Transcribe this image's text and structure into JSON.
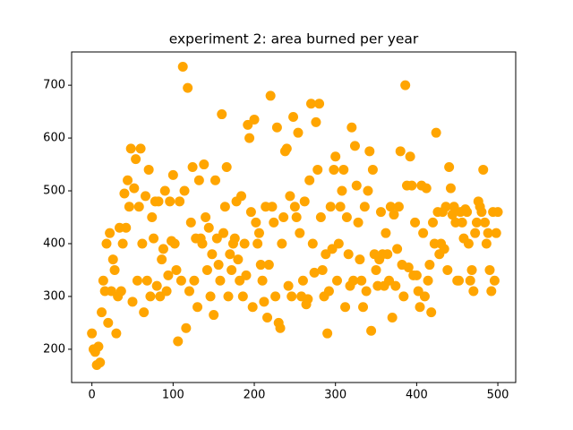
{
  "chart_data": {
    "type": "scatter",
    "title": "experiment 2: area burned per year",
    "color": "#ffa500",
    "xlim": [
      -25,
      522
    ],
    "ylim": [
      137,
      763
    ],
    "xticks": [
      0,
      100,
      200,
      300,
      400,
      500
    ],
    "yticks": [
      200,
      300,
      400,
      500,
      600,
      700
    ],
    "x": [
      0,
      2,
      4,
      6,
      8,
      10,
      12,
      14,
      16,
      18,
      20,
      22,
      24,
      26,
      28,
      30,
      32,
      34,
      36,
      38,
      40,
      42,
      44,
      46,
      48,
      50,
      52,
      54,
      56,
      58,
      60,
      62,
      64,
      66,
      68,
      70,
      72,
      74,
      76,
      78,
      80,
      82,
      84,
      86,
      88,
      90,
      92,
      94,
      96,
      98,
      100,
      102,
      104,
      106,
      108,
      110,
      112,
      114,
      116,
      118,
      120,
      122,
      124,
      126,
      128,
      130,
      132,
      134,
      136,
      138,
      140,
      142,
      144,
      146,
      148,
      150,
      152,
      154,
      156,
      158,
      160,
      162,
      164,
      166,
      168,
      170,
      172,
      174,
      176,
      178,
      180,
      182,
      184,
      186,
      188,
      190,
      192,
      194,
      196,
      198,
      200,
      202,
      204,
      206,
      208,
      210,
      212,
      214,
      216,
      218,
      220,
      222,
      224,
      226,
      228,
      230,
      232,
      234,
      236,
      238,
      240,
      242,
      244,
      246,
      248,
      250,
      252,
      254,
      256,
      258,
      260,
      262,
      264,
      266,
      268,
      270,
      272,
      274,
      276,
      278,
      280,
      282,
      284,
      286,
      288,
      290,
      292,
      294,
      296,
      298,
      300,
      302,
      304,
      306,
      308,
      310,
      312,
      314,
      316,
      318,
      320,
      322,
      324,
      326,
      328,
      330,
      332,
      334,
      336,
      338,
      340,
      342,
      344,
      346,
      348,
      350,
      352,
      354,
      356,
      358,
      360,
      362,
      364,
      366,
      368,
      370,
      372,
      374,
      376,
      378,
      380,
      382,
      384,
      386,
      388,
      390,
      392,
      394,
      396,
      398,
      400,
      402,
      404,
      406,
      408,
      410,
      412,
      414,
      416,
      418,
      420,
      422,
      424,
      426,
      428,
      430,
      432,
      434,
      436,
      438,
      440,
      442,
      444,
      446,
      448,
      450,
      452,
      454,
      456,
      458,
      460,
      462,
      464,
      466,
      468,
      470,
      472,
      474,
      476,
      478,
      480,
      482,
      484,
      486,
      488,
      490,
      492,
      494,
      496,
      498,
      500
    ],
    "y": [
      230,
      200,
      195,
      170,
      205,
      175,
      270,
      330,
      310,
      400,
      250,
      420,
      310,
      370,
      350,
      230,
      300,
      430,
      310,
      400,
      495,
      430,
      520,
      470,
      580,
      290,
      505,
      560,
      330,
      470,
      580,
      400,
      270,
      490,
      330,
      540,
      300,
      450,
      410,
      480,
      320,
      480,
      300,
      370,
      390,
      500,
      310,
      340,
      480,
      405,
      530,
      400,
      350,
      215,
      480,
      330,
      735,
      500,
      240,
      695,
      310,
      440,
      545,
      330,
      410,
      280,
      520,
      410,
      400,
      550,
      450,
      350,
      430,
      300,
      380,
      265,
      520,
      410,
      360,
      330,
      645,
      420,
      470,
      545,
      300,
      380,
      350,
      400,
      410,
      480,
      370,
      330,
      490,
      300,
      400,
      340,
      625,
      600,
      460,
      280,
      635,
      440,
      400,
      420,
      360,
      330,
      290,
      470,
      260,
      360,
      680,
      470,
      440,
      300,
      620,
      250,
      240,
      400,
      450,
      575,
      580,
      320,
      490,
      300,
      640,
      470,
      450,
      610,
      420,
      300,
      330,
      480,
      285,
      295,
      520,
      665,
      400,
      345,
      630,
      540,
      665,
      450,
      350,
      300,
      380,
      230,
      310,
      470,
      390,
      540,
      565,
      330,
      400,
      470,
      500,
      540,
      280,
      450,
      380,
      320,
      620,
      330,
      585,
      510,
      440,
      370,
      330,
      280,
      470,
      310,
      500,
      575,
      235,
      540,
      380,
      350,
      320,
      370,
      460,
      380,
      320,
      420,
      380,
      330,
      470,
      260,
      455,
      320,
      390,
      470,
      575,
      360,
      300,
      700,
      510,
      355,
      565,
      510,
      340,
      440,
      340,
      310,
      280,
      510,
      420,
      300,
      505,
      330,
      360,
      270,
      440,
      400,
      610,
      460,
      380,
      400,
      460,
      390,
      470,
      350,
      545,
      505,
      455,
      470,
      440,
      330,
      330,
      460,
      440,
      410,
      465,
      460,
      400,
      330,
      350,
      310,
      420,
      440,
      480,
      470,
      460,
      540,
      440,
      400,
      420,
      350,
      310,
      460,
      330,
      420,
      460
    ]
  }
}
